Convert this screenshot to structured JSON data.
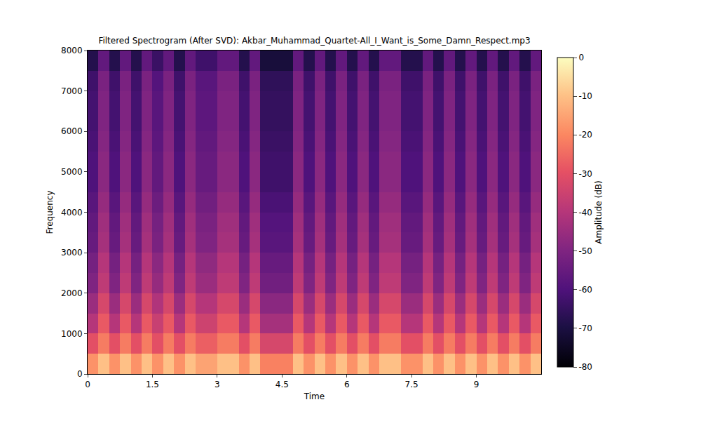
{
  "chart_data": {
    "type": "heatmap",
    "title": "Filtered Spectrogram (After SVD): Akbar_Muhammad_Quartet-All_I_Want_is_Some_Damn_Respect.mp3",
    "x_label": "Time",
    "y_label": "Frequency",
    "xlim": [
      0,
      10.5
    ],
    "ylim": [
      0,
      8000
    ],
    "xticks": [
      0,
      1.5,
      3,
      4.5,
      6,
      7.5,
      9
    ],
    "yticks": [
      0,
      1000,
      2000,
      3000,
      4000,
      5000,
      6000,
      7000,
      8000
    ],
    "x": [
      0.125,
      0.375,
      0.625,
      0.875,
      1.125,
      1.375,
      1.625,
      1.875,
      2.125,
      2.375,
      2.625,
      2.875,
      3.125,
      3.375,
      3.625,
      3.875,
      4.125,
      4.375,
      4.625,
      4.875,
      5.125,
      5.375,
      5.625,
      5.875,
      6.125,
      6.375,
      6.625,
      6.875,
      7.125,
      7.375,
      7.625,
      7.875,
      8.125,
      8.375,
      8.625,
      8.875,
      9.125,
      9.375,
      9.625,
      9.875,
      10.125,
      10.375
    ],
    "y": [
      250,
      750,
      1250,
      1750,
      2250,
      2750,
      3250,
      3750,
      4250,
      4750,
      5250,
      5750,
      6250,
      6750,
      7250,
      7750
    ],
    "z": [
      [
        -18,
        -10,
        -18,
        -10,
        -18,
        -10,
        -18,
        -10,
        -18,
        -10,
        -15,
        -15,
        -10,
        -10,
        -18,
        -10,
        -21,
        -21,
        -21,
        -10,
        -18,
        -10,
        -18,
        -10,
        -18,
        -10,
        -18,
        -10,
        -10,
        -18,
        -18,
        -10,
        -18,
        -10,
        -18,
        -10,
        -18,
        -10,
        -18,
        -10,
        -18,
        -10
      ],
      [
        -30,
        -22,
        -30,
        -22,
        -30,
        -22,
        -30,
        -22,
        -30,
        -22,
        -27,
        -27,
        -22,
        -22,
        -30,
        -22,
        -33,
        -33,
        -33,
        -22,
        -30,
        -22,
        -30,
        -22,
        -30,
        -22,
        -30,
        -22,
        -22,
        -30,
        -30,
        -22,
        -30,
        -22,
        -30,
        -22,
        -30,
        -22,
        -30,
        -22,
        -30,
        -22
      ],
      [
        -40,
        -28,
        -40,
        -28,
        -40,
        -28,
        -36,
        -28,
        -40,
        -28,
        -35,
        -35,
        -28,
        -28,
        -40,
        -28,
        -43,
        -43,
        -43,
        -28,
        -40,
        -28,
        -40,
        -28,
        -40,
        -28,
        -40,
        -28,
        -28,
        -40,
        -40,
        -28,
        -40,
        -28,
        -40,
        -28,
        -40,
        -28,
        -40,
        -28,
        -40,
        -28
      ],
      [
        -45,
        -33,
        -45,
        -33,
        -45,
        -33,
        -41,
        -33,
        -45,
        -33,
        -40,
        -40,
        -33,
        -33,
        -45,
        -33,
        -48,
        -48,
        -48,
        -33,
        -45,
        -33,
        -45,
        -33,
        -45,
        -33,
        -45,
        -33,
        -33,
        -45,
        -45,
        -33,
        -45,
        -33,
        -45,
        -33,
        -45,
        -33,
        -45,
        -33,
        -45,
        -33
      ],
      [
        -50,
        -38,
        -50,
        -38,
        -50,
        -38,
        -46,
        -38,
        -50,
        -38,
        -45,
        -45,
        -38,
        -38,
        -50,
        -38,
        -53,
        -53,
        -53,
        -38,
        -50,
        -38,
        -50,
        -38,
        -50,
        -38,
        -50,
        -38,
        -38,
        -50,
        -50,
        -38,
        -50,
        -38,
        -50,
        -38,
        -50,
        -38,
        -50,
        -38,
        -50,
        -38
      ],
      [
        -52,
        -40,
        -52,
        -40,
        -52,
        -40,
        -48,
        -40,
        -52,
        -40,
        -47,
        -47,
        -40,
        -40,
        -52,
        -40,
        -55,
        -55,
        -55,
        -40,
        -52,
        -40,
        -52,
        -40,
        -52,
        -40,
        -52,
        -40,
        -40,
        -52,
        -52,
        -40,
        -52,
        -40,
        -52,
        -40,
        -52,
        -40,
        -52,
        -40,
        -52,
        -40
      ],
      [
        -55,
        -43,
        -55,
        -43,
        -55,
        -43,
        -51,
        -43,
        -55,
        -43,
        -50,
        -50,
        -43,
        -43,
        -55,
        -43,
        -58,
        -58,
        -58,
        -43,
        -55,
        -43,
        -55,
        -43,
        -55,
        -43,
        -55,
        -43,
        -43,
        -55,
        -55,
        -43,
        -55,
        -43,
        -55,
        -43,
        -55,
        -43,
        -55,
        -43,
        -55,
        -43
      ],
      [
        -56,
        -44,
        -56,
        -44,
        -56,
        -44,
        -52,
        -44,
        -56,
        -44,
        -51,
        -51,
        -44,
        -44,
        -56,
        -44,
        -59,
        -59,
        -59,
        -44,
        -56,
        -44,
        -56,
        -44,
        -56,
        -44,
        -56,
        -44,
        -44,
        -56,
        -56,
        -44,
        -56,
        -44,
        -56,
        -44,
        -56,
        -44,
        -56,
        -44,
        -56,
        -44
      ],
      [
        -58,
        -46,
        -58,
        -46,
        -58,
        -46,
        -54,
        -46,
        -58,
        -46,
        -53,
        -53,
        -46,
        -46,
        -58,
        -46,
        -61,
        -61,
        -61,
        -46,
        -58,
        -46,
        -58,
        -46,
        -58,
        -46,
        -58,
        -46,
        -46,
        -58,
        -58,
        -46,
        -58,
        -46,
        -58,
        -46,
        -58,
        -46,
        -58,
        -46,
        -58,
        -46
      ],
      [
        -60,
        -48,
        -60,
        -48,
        -60,
        -48,
        -56,
        -48,
        -60,
        -48,
        -55,
        -55,
        -48,
        -48,
        -60,
        -48,
        -63,
        -63,
        -63,
        -48,
        -60,
        -48,
        -60,
        -48,
        -60,
        -48,
        -60,
        -48,
        -48,
        -60,
        -60,
        -48,
        -60,
        -48,
        -60,
        -48,
        -60,
        -48,
        -60,
        -48,
        -60,
        -48
      ],
      [
        -60,
        -48,
        -60,
        -48,
        -60,
        -48,
        -56,
        -48,
        -60,
        -48,
        -55,
        -55,
        -48,
        -48,
        -60,
        -48,
        -63,
        -63,
        -63,
        -48,
        -60,
        -48,
        -60,
        -48,
        -60,
        -48,
        -60,
        -48,
        -48,
        -60,
        -60,
        -48,
        -60,
        -48,
        -60,
        -48,
        -60,
        -48,
        -60,
        -48,
        -60,
        -48
      ],
      [
        -61,
        -49,
        -61,
        -49,
        -61,
        -49,
        -57,
        -49,
        -61,
        -49,
        -56,
        -56,
        -49,
        -49,
        -61,
        -49,
        -64,
        -64,
        -64,
        -49,
        -61,
        -49,
        -61,
        -49,
        -61,
        -49,
        -61,
        -49,
        -49,
        -61,
        -61,
        -49,
        -61,
        -49,
        -61,
        -49,
        -61,
        -49,
        -61,
        -49,
        -61,
        -49
      ],
      [
        -62,
        -50,
        -62,
        -50,
        -62,
        -50,
        -58,
        -50,
        -62,
        -50,
        -57,
        -57,
        -50,
        -50,
        -62,
        -50,
        -65,
        -65,
        -65,
        -50,
        -62,
        -50,
        -62,
        -50,
        -62,
        -50,
        -62,
        -50,
        -50,
        -62,
        -62,
        -50,
        -62,
        -50,
        -62,
        -50,
        -62,
        -50,
        -62,
        -50,
        -62,
        -50
      ],
      [
        -62,
        -50,
        -62,
        -50,
        -62,
        -50,
        -58,
        -50,
        -62,
        -50,
        -57,
        -57,
        -50,
        -50,
        -62,
        -50,
        -65,
        -65,
        -65,
        -50,
        -62,
        -50,
        -62,
        -50,
        -62,
        -50,
        -62,
        -50,
        -50,
        -62,
        -62,
        -50,
        -62,
        -50,
        -62,
        -50,
        -62,
        -50,
        -62,
        -50,
        -62,
        -50
      ],
      [
        -63,
        -51,
        -63,
        -51,
        -63,
        -51,
        -59,
        -51,
        -63,
        -51,
        -58,
        -58,
        -51,
        -51,
        -63,
        -51,
        -66,
        -66,
        -66,
        -51,
        -63,
        -51,
        -63,
        -51,
        -63,
        -51,
        -63,
        -51,
        -51,
        -63,
        -63,
        -51,
        -63,
        -51,
        -63,
        -51,
        -63,
        -51,
        -63,
        -51,
        -63,
        -51
      ],
      [
        -68,
        -56,
        -68,
        -56,
        -68,
        -56,
        -64,
        -56,
        -68,
        -56,
        -63,
        -63,
        -56,
        -56,
        -68,
        -56,
        -71,
        -71,
        -71,
        -56,
        -68,
        -56,
        -68,
        -56,
        -68,
        -56,
        -68,
        -56,
        -56,
        -68,
        -68,
        -56,
        -68,
        -56,
        -68,
        -56,
        -68,
        -56,
        -68,
        -56,
        -68,
        -56
      ]
    ],
    "colorbar_label": "Amplitude (dB)",
    "zlim": [
      -80,
      0
    ],
    "zticks": [
      -80,
      -70,
      -60,
      -50,
      -40,
      -30,
      -20,
      -10,
      0
    ]
  }
}
